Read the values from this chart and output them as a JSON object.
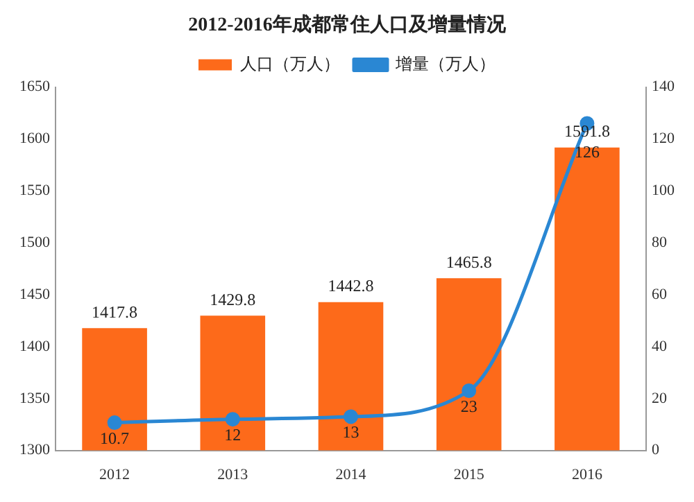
{
  "chart_data": {
    "type": "bar",
    "title": "2012-2016年成都常住人口及增量情况",
    "categories": [
      "2012",
      "2013",
      "2014",
      "2015",
      "2016"
    ],
    "series": [
      {
        "name": "人口（万人）",
        "color": "#fd6a1a",
        "values": [
          1417.8,
          1429.8,
          1442.8,
          1465.8,
          1591.8
        ]
      },
      {
        "name": "增量（万人）",
        "type": "line",
        "axis": "y2",
        "color": "#2a87d3",
        "marker": "circle",
        "values": [
          10.7,
          12,
          13,
          23,
          126
        ]
      }
    ],
    "ylim": [
      1300,
      1650
    ],
    "yticks": [
      1300,
      1350,
      1400,
      1450,
      1500,
      1550,
      1600,
      1650
    ],
    "y2lim": [
      0,
      140
    ],
    "y2ticks": [
      0,
      20,
      40,
      60,
      80,
      100,
      120,
      140
    ],
    "legend": "top",
    "grid": false,
    "data_labels": true
  }
}
